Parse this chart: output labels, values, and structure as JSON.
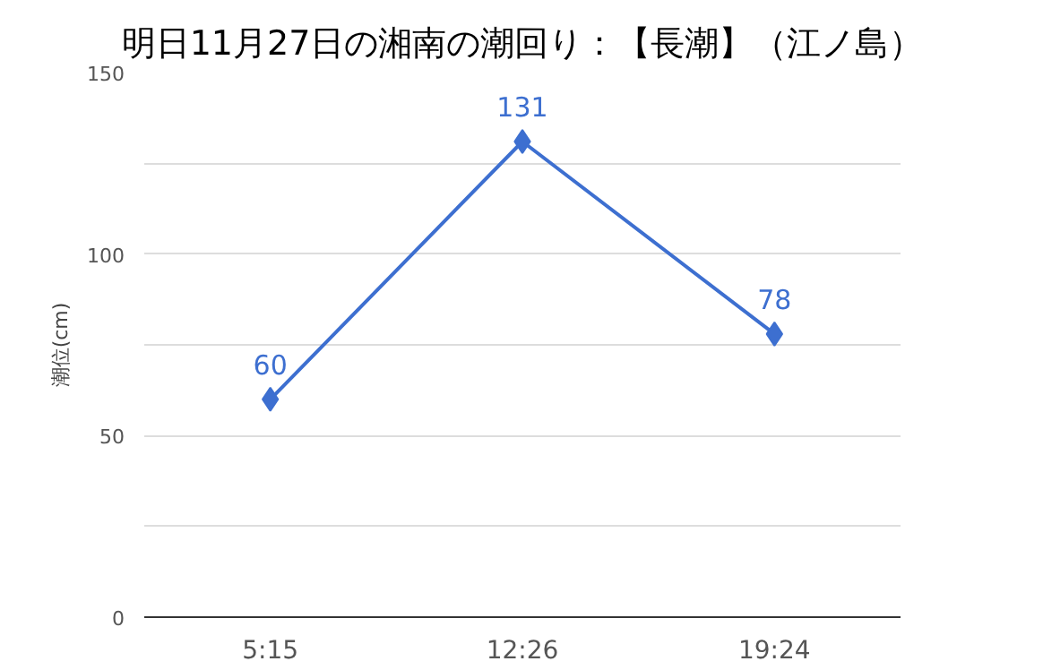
{
  "chart_data": {
    "type": "line",
    "title": "明日11月27日の湘南の潮回り：【長潮】（江ノ島）",
    "ylabel": "潮位(cm)",
    "categories": [
      "5:15",
      "12:26",
      "19:24"
    ],
    "series": [
      {
        "color": "#3d6fd0",
        "values": [
          60,
          131,
          78
        ]
      }
    ],
    "ylim": [
      0,
      150
    ],
    "yticks": [
      0,
      {
        "value": 25,
        "label": null
      },
      50,
      {
        "value": 75,
        "label": null
      },
      100,
      {
        "value": 125,
        "label": null
      },
      150
    ],
    "grid": "y",
    "marker": "diamond",
    "line_style": "solid",
    "data_labels": true
  }
}
